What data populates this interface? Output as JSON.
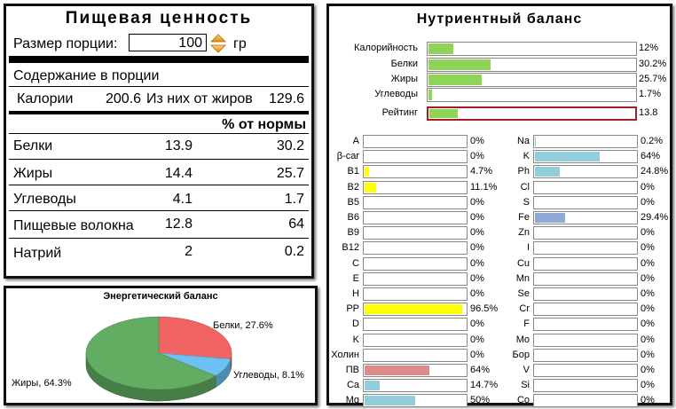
{
  "facts": {
    "title": "Пищевая ценность",
    "portion_label": "Размер порции:",
    "portion_value": "100",
    "portion_unit": "гр",
    "section_label": "Содержание в порции",
    "calories_label": "Калории",
    "calories_value": "200.6",
    "fat_calories_label": "Из них от жиров",
    "fat_calories_value": "129.6",
    "norm_header": "% от нормы",
    "rows": [
      {
        "label": "Белки",
        "value": "13.9",
        "pct": "30.2"
      },
      {
        "label": "Жиры",
        "value": "14.4",
        "pct": "25.7"
      },
      {
        "label": "Углеводы",
        "value": "4.1",
        "pct": "1.7"
      },
      {
        "label": "Пищевые волокна",
        "value": "12.8",
        "pct": "64"
      },
      {
        "label": "Натрий",
        "value": "2",
        "pct": "0.2"
      }
    ]
  },
  "pie": {
    "title": "Энергетический баланс",
    "slices": [
      {
        "label": "Белки, 27.6%",
        "value": 27.6,
        "color": "#f26464"
      },
      {
        "label": "Углеводы, 8.1%",
        "value": 8.1,
        "color": "#6cc1f2"
      },
      {
        "label": "Жиры, 64.3%",
        "value": 64.3,
        "color": "#63ad63"
      }
    ]
  },
  "balance": {
    "title": "Нутриентный баланс",
    "top": [
      {
        "label": "Калорийность",
        "value_text": "12%",
        "level": 12,
        "color": "#8fd454"
      },
      {
        "label": "Белки",
        "value_text": "30.2%",
        "level": 30.2,
        "color": "#8fd454"
      },
      {
        "label": "Жиры",
        "value_text": "25.7%",
        "level": 25.7,
        "color": "#8fd454"
      },
      {
        "label": "Углеводы",
        "value_text": "1.7%",
        "level": 1.7,
        "color": "#8fd454"
      },
      {
        "label": "Рейтинг",
        "value_text": "13.8",
        "level": 13.8,
        "color": "#8fd454",
        "highlight": "#a02020"
      }
    ],
    "left": [
      {
        "label": "A",
        "value_text": "0%",
        "level": 0,
        "color": "#ffff00"
      },
      {
        "label": "β-car",
        "value_text": "0%",
        "level": 0,
        "color": "#ffff00"
      },
      {
        "label": "B1",
        "value_text": "4.7%",
        "level": 4.7,
        "color": "#ffff00"
      },
      {
        "label": "B2",
        "value_text": "11.1%",
        "level": 11.1,
        "color": "#ffff00"
      },
      {
        "label": "B5",
        "value_text": "0%",
        "level": 0,
        "color": "#ffff00"
      },
      {
        "label": "B6",
        "value_text": "0%",
        "level": 0,
        "color": "#ffff00"
      },
      {
        "label": "B9",
        "value_text": "0%",
        "level": 0,
        "color": "#ffff00"
      },
      {
        "label": "B12",
        "value_text": "0%",
        "level": 0,
        "color": "#ffff00"
      },
      {
        "label": "C",
        "value_text": "0%",
        "level": 0,
        "color": "#ffff00"
      },
      {
        "label": "E",
        "value_text": "0%",
        "level": 0,
        "color": "#ffff00"
      },
      {
        "label": "H",
        "value_text": "0%",
        "level": 0,
        "color": "#ffff00"
      },
      {
        "label": "PP",
        "value_text": "96.5%",
        "level": 96.5,
        "color": "#ffff00"
      },
      {
        "label": "D",
        "value_text": "0%",
        "level": 0,
        "color": "#ffff00"
      },
      {
        "label": "K",
        "value_text": "0%",
        "level": 0,
        "color": "#ffff00"
      },
      {
        "label": "Холин",
        "value_text": "0%",
        "level": 0,
        "color": "#ffff00"
      },
      {
        "label": "ПВ",
        "value_text": "64%",
        "level": 64,
        "color": "#dc8a8a"
      },
      {
        "label": "Ca",
        "value_text": "14.7%",
        "level": 14.7,
        "color": "#91cddb"
      },
      {
        "label": "Mg",
        "value_text": "50%",
        "level": 50,
        "color": "#91cddb"
      }
    ],
    "right": [
      {
        "label": "Na",
        "value_text": "0.2%",
        "level": 0.2,
        "color": "#91cddb"
      },
      {
        "label": "K",
        "value_text": "64%",
        "level": 64,
        "color": "#91cddb"
      },
      {
        "label": "Ph",
        "value_text": "24.8%",
        "level": 24.8,
        "color": "#91cddb"
      },
      {
        "label": "Cl",
        "value_text": "0%",
        "level": 0,
        "color": "#91cddb"
      },
      {
        "label": "S",
        "value_text": "0%",
        "level": 0,
        "color": "#91cddb"
      },
      {
        "label": "Fe",
        "value_text": "29.4%",
        "level": 29.4,
        "color": "#91a9d6"
      },
      {
        "label": "Zn",
        "value_text": "0%",
        "level": 0,
        "color": "#91a9d6"
      },
      {
        "label": "I",
        "value_text": "0%",
        "level": 0,
        "color": "#91a9d6"
      },
      {
        "label": "Cu",
        "value_text": "0%",
        "level": 0,
        "color": "#91a9d6"
      },
      {
        "label": "Mn",
        "value_text": "0%",
        "level": 0,
        "color": "#91a9d6"
      },
      {
        "label": "Se",
        "value_text": "0%",
        "level": 0,
        "color": "#91a9d6"
      },
      {
        "label": "Cr",
        "value_text": "0%",
        "level": 0,
        "color": "#91a9d6"
      },
      {
        "label": "F",
        "value_text": "0%",
        "level": 0,
        "color": "#91a9d6"
      },
      {
        "label": "Mo",
        "value_text": "0%",
        "level": 0,
        "color": "#91a9d6"
      },
      {
        "label": "Бор",
        "value_text": "0%",
        "level": 0,
        "color": "#91a9d6"
      },
      {
        "label": "V",
        "value_text": "0%",
        "level": 0,
        "color": "#91a9d6"
      },
      {
        "label": "Si",
        "value_text": "0%",
        "level": 0,
        "color": "#91a9d6"
      },
      {
        "label": "Co",
        "value_text": "0%",
        "level": 0,
        "color": "#91a9d6"
      }
    ]
  }
}
